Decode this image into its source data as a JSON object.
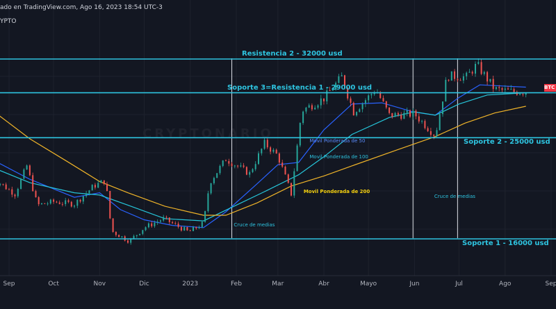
{
  "header": {
    "title_line": "ado en TradingView.com, Ago 16, 2023 18:54 UTC-3",
    "symbol_fragment": "YPTO"
  },
  "price_tag": "BTC",
  "watermark": "CRYPTONARIO",
  "colors": {
    "background": "#131722",
    "level_line": "#2ec4e0",
    "candle_up": "#26a69a",
    "candle_down": "#ef5350",
    "ma50": "#2962ff",
    "ma100": "#26c6da",
    "ma200": "#f0b429",
    "marker_line": "#e0e3eb"
  },
  "chart_data": {
    "type": "candlestick",
    "title": "",
    "xlabel": "",
    "ylabel": "",
    "ylim": [
      14500,
      33500
    ],
    "x_tick_labels": [
      "Sep",
      "Oct",
      "Nov",
      "Dic",
      "2023",
      "Feb",
      "Mar",
      "Abr",
      "Mayo",
      "Jun",
      "Jul",
      "Ago",
      "Sep"
    ],
    "x_tick_months": [
      "2022-09",
      "2022-10",
      "2022-11",
      "2022-12",
      "2023-01",
      "2023-02",
      "2023-03",
      "2023-04",
      "2023-05",
      "2023-06",
      "2023-07",
      "2023-08",
      "2023-09"
    ],
    "horizontal_levels": [
      {
        "label": "Resistencia 2 - 32000 usd",
        "value": 32000
      },
      {
        "label": "Soporte 3=Resistencia 1 - 29000 usd",
        "value": 29000
      },
      {
        "label": "Soporte 2 - 25000 usd",
        "value": 25000
      },
      {
        "label": "Soporte 1 - 16000 usd",
        "value": 16000
      }
    ],
    "annotations": [
      {
        "text": "Cruce de medias",
        "date": "2023-01-28"
      },
      {
        "text": "Cruce de medias",
        "date": "2023-06-12"
      },
      {
        "text": "Movil Ponderada de 50",
        "date": "2023-03-20",
        "value": 24700
      },
      {
        "text": "Movil Ponderada de 100",
        "date": "2023-03-20",
        "value": 23300
      },
      {
        "text": "Movil Ponderada de 200",
        "date": "2023-03-16",
        "value": 20200
      }
    ],
    "vertical_markers": [
      "2023-01-29",
      "2023-05-31",
      "2023-06-30"
    ],
    "series": [
      {
        "name": "Movil Ponderada de 50",
        "points": [
          [
            "2022-08-20",
            23100
          ],
          [
            "2022-09-15",
            21300
          ],
          [
            "2022-10-15",
            19700
          ],
          [
            "2022-11-01",
            20100
          ],
          [
            "2022-11-15",
            18600
          ],
          [
            "2022-12-01",
            17700
          ],
          [
            "2022-12-20",
            17200
          ],
          [
            "2023-01-10",
            17000
          ],
          [
            "2023-01-25",
            18400
          ],
          [
            "2023-02-15",
            20900
          ],
          [
            "2023-03-01",
            22600
          ],
          [
            "2023-03-15",
            22800
          ],
          [
            "2023-04-01",
            25700
          ],
          [
            "2023-04-20",
            28000
          ],
          [
            "2023-05-10",
            28100
          ],
          [
            "2023-05-31",
            27300
          ],
          [
            "2023-06-15",
            27000
          ],
          [
            "2023-06-30",
            28500
          ],
          [
            "2023-07-15",
            29700
          ],
          [
            "2023-08-15",
            29500
          ]
        ]
      },
      {
        "name": "Movil Ponderada de 100",
        "points": [
          [
            "2022-08-20",
            22400
          ],
          [
            "2022-09-15",
            21000
          ],
          [
            "2022-10-15",
            20100
          ],
          [
            "2022-11-01",
            19900
          ],
          [
            "2022-11-20",
            19000
          ],
          [
            "2022-12-15",
            17800
          ],
          [
            "2023-01-10",
            17600
          ],
          [
            "2023-02-01",
            19000
          ],
          [
            "2023-02-20",
            20200
          ],
          [
            "2023-03-15",
            21700
          ],
          [
            "2023-04-01",
            23300
          ],
          [
            "2023-04-20",
            25300
          ],
          [
            "2023-05-15",
            26800
          ],
          [
            "2023-06-01",
            27300
          ],
          [
            "2023-06-15",
            27000
          ],
          [
            "2023-07-01",
            28000
          ],
          [
            "2023-07-20",
            28800
          ],
          [
            "2023-08-15",
            29000
          ]
        ]
      },
      {
        "name": "Movil Ponderada de 200",
        "points": [
          [
            "2022-08-20",
            27500
          ],
          [
            "2022-09-15",
            24900
          ],
          [
            "2022-10-10",
            22900
          ],
          [
            "2022-11-01",
            21100
          ],
          [
            "2022-11-20",
            20100
          ],
          [
            "2022-12-15",
            18900
          ],
          [
            "2023-01-10",
            18100
          ],
          [
            "2023-01-25",
            18100
          ],
          [
            "2023-02-15",
            19200
          ],
          [
            "2023-03-10",
            20700
          ],
          [
            "2023-04-01",
            21600
          ],
          [
            "2023-04-20",
            22500
          ],
          [
            "2023-05-20",
            23900
          ],
          [
            "2023-06-15",
            25100
          ],
          [
            "2023-07-05",
            26300
          ],
          [
            "2023-07-25",
            27200
          ],
          [
            "2023-08-15",
            27800
          ]
        ]
      }
    ],
    "price_path": [
      [
        "2022-08-20",
        21500
      ],
      [
        "2022-09-05",
        20000
      ],
      [
        "2022-09-13",
        22500
      ],
      [
        "2022-09-20",
        19000
      ],
      [
        "2022-10-01",
        19300
      ],
      [
        "2022-10-15",
        19100
      ],
      [
        "2022-10-28",
        20700
      ],
      [
        "2022-11-05",
        21200
      ],
      [
        "2022-11-09",
        16700
      ],
      [
        "2022-11-21",
        15800
      ],
      [
        "2022-12-01",
        17000
      ],
      [
        "2022-12-14",
        17800
      ],
      [
        "2022-12-31",
        16600
      ],
      [
        "2023-01-10",
        17400
      ],
      [
        "2023-01-14",
        21000
      ],
      [
        "2023-01-25",
        23100
      ],
      [
        "2023-02-10",
        21800
      ],
      [
        "2023-02-20",
        24500
      ],
      [
        "2023-03-01",
        23400
      ],
      [
        "2023-03-10",
        20000
      ],
      [
        "2023-03-17",
        27400
      ],
      [
        "2023-04-01",
        28500
      ],
      [
        "2023-04-13",
        30400
      ],
      [
        "2023-04-21",
        27300
      ],
      [
        "2023-05-06",
        29300
      ],
      [
        "2023-05-15",
        27000
      ],
      [
        "2023-06-01",
        27100
      ],
      [
        "2023-06-15",
        25200
      ],
      [
        "2023-06-23",
        30500
      ],
      [
        "2023-07-06",
        30400
      ],
      [
        "2023-07-13",
        31500
      ],
      [
        "2023-07-25",
        29300
      ],
      [
        "2023-08-05",
        29100
      ],
      [
        "2023-08-16",
        29100
      ]
    ]
  }
}
